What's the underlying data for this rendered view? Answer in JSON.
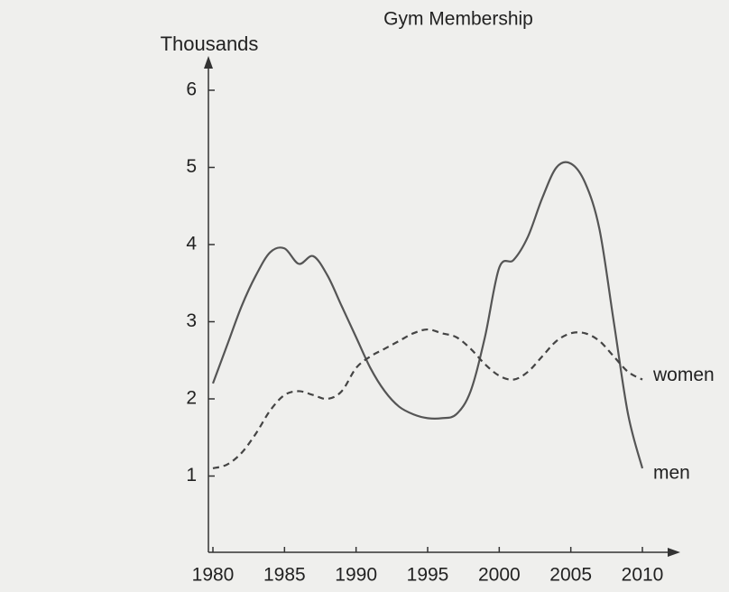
{
  "chart_data": {
    "type": "line",
    "title": "Gym Membership",
    "y_label": "Thousands",
    "x": [
      1980,
      1981,
      1982,
      1983,
      1984,
      1985,
      1986,
      1987,
      1988,
      1989,
      1990,
      1991,
      1992,
      1993,
      1994,
      1995,
      1996,
      1997,
      1998,
      1999,
      2000,
      2001,
      2002,
      2003,
      2004,
      2005,
      2006,
      2007,
      2008,
      2009,
      2010
    ],
    "series": [
      {
        "name": "men",
        "color": "#555555",
        "dash": false,
        "values": [
          2.2,
          2.7,
          3.2,
          3.6,
          3.9,
          3.95,
          3.75,
          3.85,
          3.6,
          3.2,
          2.8,
          2.4,
          2.1,
          1.9,
          1.8,
          1.75,
          1.75,
          1.8,
          2.1,
          2.8,
          3.7,
          3.8,
          4.1,
          4.6,
          5.0,
          5.05,
          4.8,
          4.2,
          3.0,
          1.8,
          1.1
        ]
      },
      {
        "name": "women",
        "color": "#444444",
        "dash": true,
        "values": [
          1.1,
          1.15,
          1.3,
          1.55,
          1.85,
          2.05,
          2.1,
          2.05,
          2.0,
          2.1,
          2.4,
          2.55,
          2.65,
          2.75,
          2.85,
          2.9,
          2.85,
          2.8,
          2.65,
          2.45,
          2.3,
          2.25,
          2.35,
          2.55,
          2.75,
          2.85,
          2.85,
          2.75,
          2.55,
          2.35,
          2.25
        ]
      }
    ],
    "xlim": [
      1980,
      2010
    ],
    "xticks": [
      1980,
      1985,
      1990,
      1995,
      2000,
      2005,
      2010
    ],
    "ylim": [
      0,
      6
    ],
    "yticks": [
      1,
      2,
      3,
      4,
      5,
      6
    ],
    "grid": false
  }
}
